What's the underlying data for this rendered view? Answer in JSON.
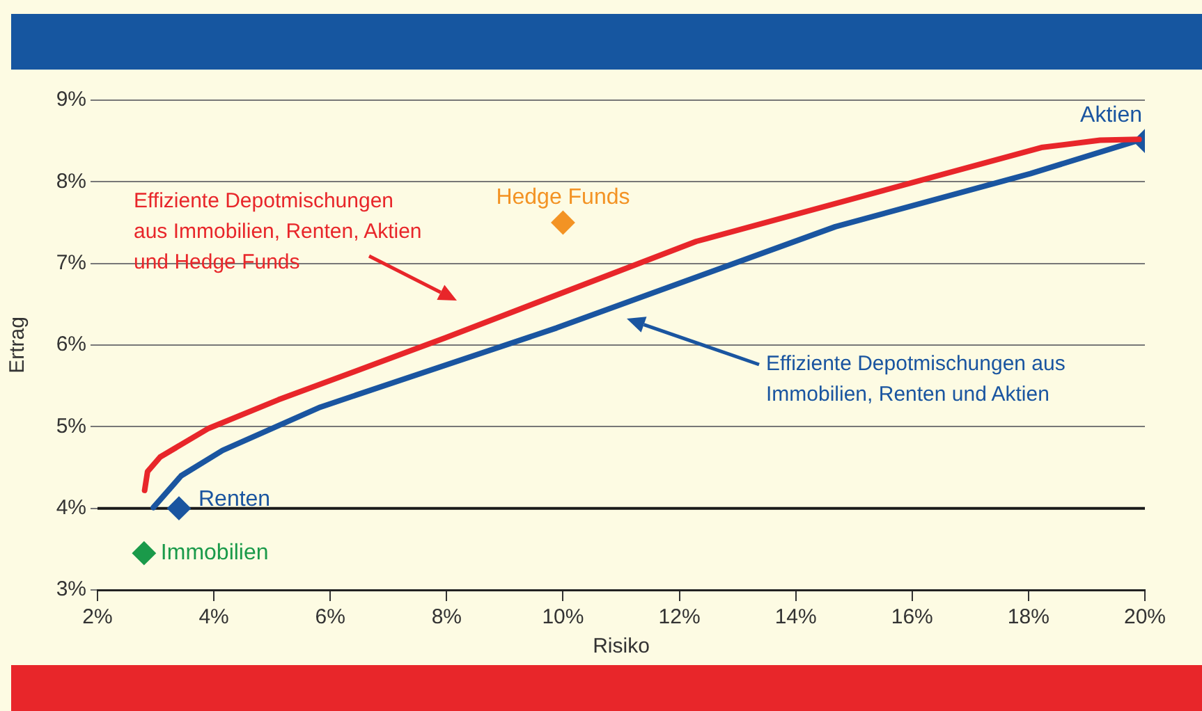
{
  "chart_data": {
    "type": "line",
    "xlabel": "Risiko",
    "ylabel": "Ertrag",
    "xlim": [
      2,
      20
    ],
    "xticks": [
      {
        "value": 2,
        "label": "2%"
      },
      {
        "value": 4,
        "label": "4%"
      },
      {
        "value": 6,
        "label": "6%"
      },
      {
        "value": 8,
        "label": "8%"
      },
      {
        "value": 10,
        "label": "10%"
      },
      {
        "value": 12,
        "label": "12%"
      },
      {
        "value": 14,
        "label": "14%"
      },
      {
        "value": 16,
        "label": "16%"
      },
      {
        "value": 18,
        "label": "18%"
      },
      {
        "value": 20,
        "label": "20%"
      }
    ],
    "ylim": [
      3,
      9
    ],
    "yticks": [
      {
        "value": 3,
        "label": "3%"
      },
      {
        "value": 4,
        "label": "4%"
      },
      {
        "value": 5,
        "label": "5%"
      },
      {
        "value": 6,
        "label": "6%"
      },
      {
        "value": 7,
        "label": "7%"
      },
      {
        "value": 8,
        "label": "8%"
      },
      {
        "value": 9,
        "label": "9%"
      }
    ],
    "grid": "y",
    "legend": false,
    "line_style": "solid",
    "ref_lines": [
      {
        "axis": "y",
        "value": 4,
        "color": "#1a1a1a"
      }
    ],
    "series": [
      {
        "type": "line",
        "color": "#e8262a",
        "marker": "none",
        "x": [
          2.81,
          2.86,
          3.08,
          3.91,
          5.11,
          7.98,
          12.29,
          18.22,
          19.23,
          19.9
        ],
        "values": [
          4.22,
          4.45,
          4.63,
          4.98,
          5.33,
          6.09,
          7.27,
          8.42,
          8.51,
          8.52
        ]
      },
      {
        "type": "line",
        "color": "#1a55a0",
        "marker": "none",
        "x": [
          2.96,
          3.44,
          4.15,
          5.83,
          9.89,
          14.68,
          18.03,
          19.94
        ],
        "values": [
          4.01,
          4.4,
          4.71,
          5.24,
          6.21,
          7.45,
          8.1,
          8.52
        ]
      },
      {
        "type": "scatter",
        "name": "Aktien",
        "color": "#1a55a0",
        "marker": "diamond",
        "x": [
          20
        ],
        "values": [
          8.5
        ]
      },
      {
        "type": "scatter",
        "name": "Hedge Funds",
        "color": "#f39324",
        "marker": "diamond",
        "x": [
          10
        ],
        "values": [
          7.5
        ]
      },
      {
        "type": "scatter",
        "name": "Renten",
        "color": "#1a55a0",
        "marker": "diamond",
        "x": [
          3.4
        ],
        "values": [
          4.0
        ]
      },
      {
        "type": "scatter",
        "name": "Immobilien",
        "color": "#1a9a4a",
        "marker": "diamond",
        "x": [
          2.8
        ],
        "values": [
          3.45
        ]
      }
    ],
    "annotations": [
      "Effiziente Depotmischungen\naus Immobilien, Renten, Aktien\nund Hedge Funds",
      "Effiziente Depotmischungen aus\nImmobilien, Renten und Aktien"
    ]
  }
}
